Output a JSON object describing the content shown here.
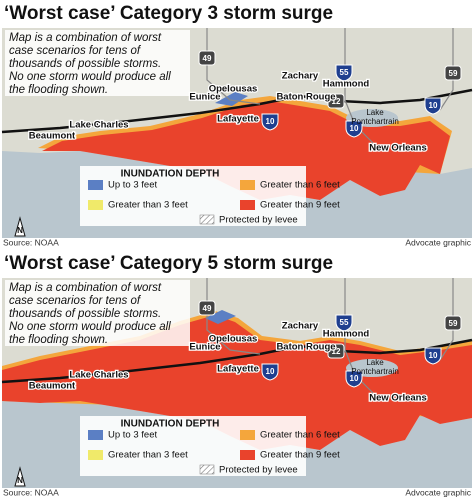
{
  "panels": [
    {
      "title": "‘Worst case’ Category 3 storm surge",
      "note": [
        "Map is a combination of worst",
        "case scenarios for tens of",
        "thousands of possible storms.",
        "No one storm would produce all",
        "the flooding shown."
      ],
      "cities": [
        "Eunice",
        "Opelousas",
        "Zachary",
        "Hammond",
        "Baton Rouge",
        "Lafayette",
        "Lake Charles",
        "Beaumont",
        "New Orleans"
      ],
      "lake": [
        "Lake",
        "Pontchartrain"
      ],
      "highways": [
        "49",
        "55",
        "59",
        "12",
        "10",
        "10",
        "10"
      ],
      "legend": {
        "title": "INUNDATION DEPTH",
        "items": [
          {
            "label": "Up to 3 feet",
            "color": "#5b7fc4"
          },
          {
            "label": "Greater than 3 feet",
            "color": "#f0ea6a"
          },
          {
            "label": "Greater than 6 feet",
            "color": "#f4a63c"
          },
          {
            "label": "Greater than 9 feet",
            "color": "#e9432c"
          }
        ],
        "levee": "Protected by levee"
      },
      "north": "N",
      "source": "Source: NOAA",
      "credit": "Advocate graphic"
    },
    {
      "title": "‘Worst case’ Category 5 storm surge",
      "note": [
        "Map is a combination of worst",
        "case scenarios for tens of",
        "thousands of possible storms.",
        "No one storm would produce all",
        "the flooding shown."
      ],
      "cities": [
        "Eunice",
        "Opelousas",
        "Zachary",
        "Hammond",
        "Baton Rouge",
        "Lafayette",
        "Lake Charles",
        "Beaumont",
        "New Orleans"
      ],
      "lake": [
        "Lake",
        "Pontchartrain"
      ],
      "highways": [
        "49",
        "55",
        "59",
        "12",
        "10",
        "10",
        "10"
      ],
      "legend": {
        "title": "INUNDATION DEPTH",
        "items": [
          {
            "label": "Up to 3 feet",
            "color": "#5b7fc4"
          },
          {
            "label": "Greater than 3 feet",
            "color": "#f0ea6a"
          },
          {
            "label": "Greater than 6 feet",
            "color": "#f4a63c"
          },
          {
            "label": "Greater than 9 feet",
            "color": "#e9432c"
          }
        ],
        "levee": "Protected by levee"
      },
      "north": "N",
      "source": "Source: NOAA",
      "credit": "Advocate graphic"
    }
  ]
}
